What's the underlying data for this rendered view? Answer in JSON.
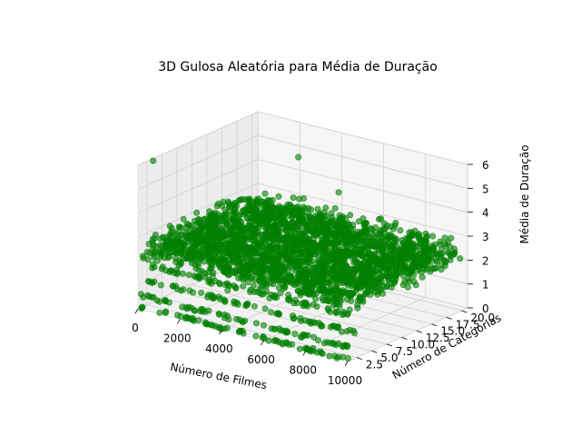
{
  "chart_data": {
    "type": "scatter",
    "projection": "3d",
    "title": "3D Gulosa Aleatória para Média de Duração",
    "xlabel": "Número de Filmes",
    "ylabel": "Número de Categorias",
    "zlabel": "Média de Duração",
    "xlim": [
      0,
      10000
    ],
    "ylim": [
      1,
      21
    ],
    "zlim": [
      0,
      6
    ],
    "xticks": [
      "0",
      "2000",
      "4000",
      "6000",
      "8000",
      "10000"
    ],
    "yticks": [
      "2.5",
      "5.0",
      "7.5",
      "10.0",
      "12.5",
      "15.0",
      "17.5",
      "20.0"
    ],
    "zticks": [
      "0",
      "1",
      "2",
      "3",
      "4",
      "5",
      "6"
    ],
    "marker_color": "#008000",
    "grid": true,
    "series": [
      {
        "x_range": [
          100,
          10000
        ],
        "y_range": [
          1,
          20
        ],
        "z_center": 2.5,
        "z_spread": 0.6,
        "low_bands": [
          {
            "y": 1,
            "z": 0.0
          },
          {
            "y": 1,
            "z": 0.5
          },
          {
            "y": 2,
            "z": 1.0
          },
          {
            "y": 3,
            "z": 1.5
          }
        ],
        "outliers": [
          {
            "x": 150,
            "y": 3,
            "z": 6.0
          },
          {
            "x": 4500,
            "y": 12,
            "z": 6.1
          },
          {
            "x": 7000,
            "y": 10,
            "z": 5.4
          }
        ]
      }
    ]
  }
}
